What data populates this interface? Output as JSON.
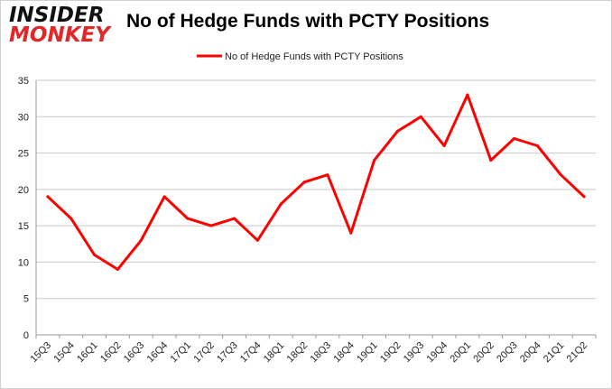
{
  "logo": {
    "line1": "INSIDER",
    "line2": "MONKEY"
  },
  "chart_data": {
    "type": "line",
    "title": "No of Hedge Funds with PCTY Positions",
    "xlabel": "",
    "ylabel": "",
    "categories": [
      "15Q3",
      "15Q4",
      "16Q1",
      "16Q2",
      "16Q3",
      "16Q4",
      "17Q1",
      "17Q2",
      "17Q3",
      "17Q4",
      "18Q1",
      "18Q2",
      "18Q3",
      "18Q4",
      "19Q1",
      "19Q2",
      "19Q3",
      "19Q4",
      "20Q1",
      "20Q2",
      "20Q3",
      "20Q4",
      "21Q1",
      "21Q2"
    ],
    "series": [
      {
        "name": "No of Hedge Funds with PCTY Positions",
        "values": [
          19,
          16,
          11,
          9,
          13,
          19,
          16,
          15,
          16,
          13,
          18,
          21,
          22,
          14,
          24,
          28,
          30,
          26,
          33,
          24,
          27,
          26,
          22,
          19
        ],
        "color": "#ff0000"
      }
    ],
    "ylim": [
      0,
      35
    ],
    "yticks": [
      0,
      5,
      10,
      15,
      20,
      25,
      30,
      35
    ],
    "grid": true,
    "legend": "top-center"
  }
}
